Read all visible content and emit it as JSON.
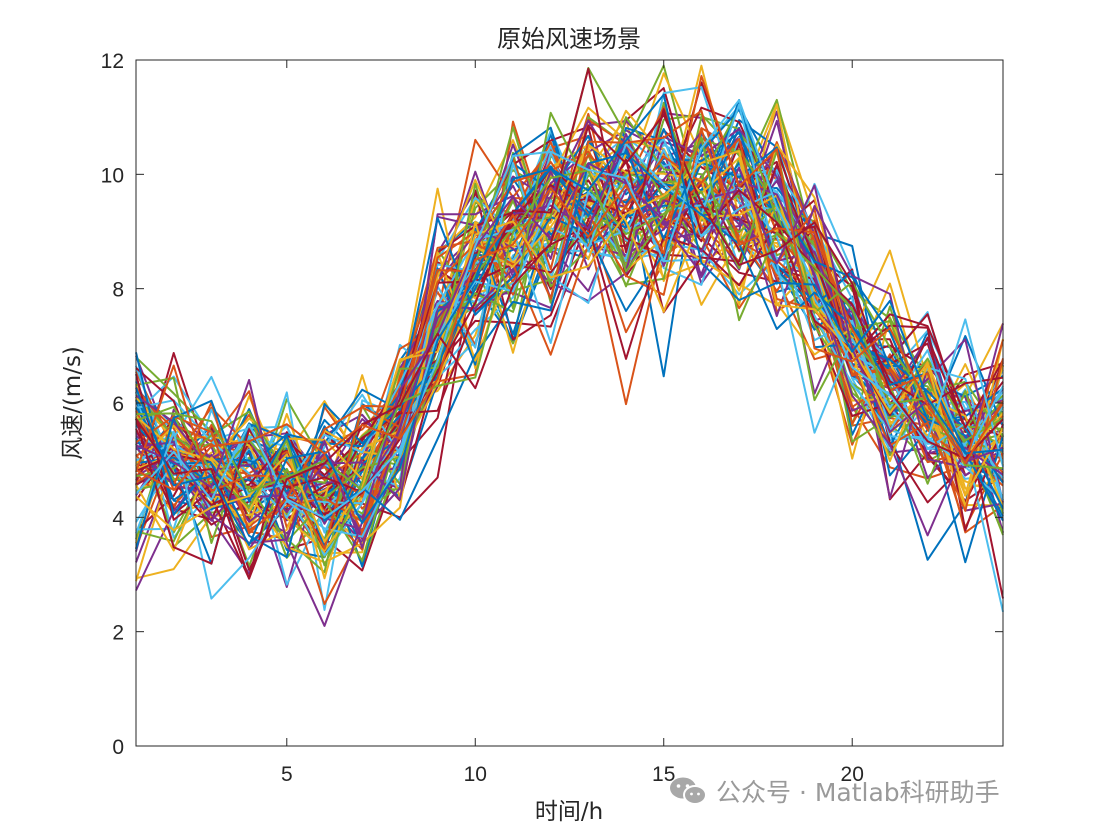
{
  "chart_data": {
    "type": "line",
    "title": "原始风速场景",
    "xlabel": "时间/h",
    "ylabel": "风速/(m/s)",
    "xlim": [
      1,
      24
    ],
    "ylim": [
      0,
      12
    ],
    "xticks": [
      5,
      10,
      15,
      20
    ],
    "yticks": [
      0,
      2,
      4,
      6,
      8,
      10,
      12
    ],
    "grid": false,
    "legend": "none",
    "x": [
      1,
      2,
      3,
      4,
      5,
      6,
      7,
      8,
      9,
      10,
      11,
      12,
      13,
      14,
      15,
      16,
      17,
      18,
      19,
      20,
      21,
      22,
      23,
      24
    ],
    "mean_profile": [
      5.2,
      5.0,
      4.7,
      4.6,
      4.5,
      4.3,
      4.7,
      5.6,
      7.3,
      8.4,
      8.9,
      9.2,
      9.5,
      9.6,
      9.6,
      9.7,
      9.6,
      9.2,
      8.3,
      7.0,
      6.3,
      5.8,
      5.4,
      5.2
    ],
    "series_count": 100,
    "colors": [
      "#0072BD",
      "#D95319",
      "#EDB120",
      "#7E2F8E",
      "#77AC30",
      "#4DBEEE",
      "#A2142F"
    ]
  },
  "watermark": {
    "icon": "wechat-icon",
    "text": "公众号 · Matlab科研助手"
  }
}
